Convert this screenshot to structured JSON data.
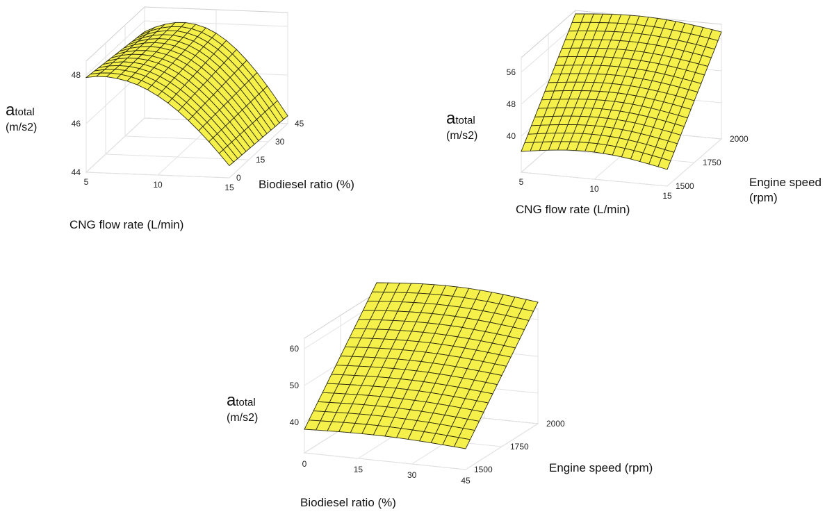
{
  "chart_data": [
    {
      "type": "surface",
      "zlabel": "atotal",
      "zlabel_symbol": "a",
      "zlabel_subscript": "total",
      "zlabel_unit": "(m/s2)",
      "xlabel": "CNG flow rate (L/min)",
      "ylabel": "Biodiesel ratio (%)",
      "x_ticks": [
        "5",
        "10",
        "15"
      ],
      "y_ticks": [
        "0",
        "15",
        "30",
        "45"
      ],
      "z_ticks": [
        "44",
        "46",
        "48"
      ],
      "x_range": [
        5,
        15
      ],
      "y_range": [
        0,
        45
      ],
      "z_range": [
        44,
        48
      ],
      "surface": {
        "x": [
          5,
          15
        ],
        "y": [
          0,
          45
        ],
        "z": [
          [
            47.8,
            47.6,
            47.4,
            47.1
          ],
          [
            46.9,
            46.6,
            46.3,
            46.1
          ],
          [
            45.2,
            44.9,
            44.7,
            44.5
          ]
        ]
      },
      "surface_color": "#f5f04a"
    },
    {
      "type": "surface",
      "zlabel": "atotal",
      "zlabel_symbol": "a",
      "zlabel_subscript": "total",
      "zlabel_unit": "(m/s2)",
      "xlabel": "CNG flow rate (L/min)",
      "ylabel": "Engine speed (rpm)",
      "x_ticks": [
        "5",
        "10",
        "15"
      ],
      "y_ticks": [
        "1500",
        "1750",
        "2000"
      ],
      "z_ticks": [
        "40",
        "48",
        "56"
      ],
      "x_range": [
        5,
        15
      ],
      "y_range": [
        1500,
        2000
      ],
      "z_range": [
        36,
        58
      ],
      "surface_color": "#f5f04a"
    },
    {
      "type": "surface",
      "zlabel": "atotal",
      "zlabel_symbol": "a",
      "zlabel_subscript": "total",
      "zlabel_unit": "(m/s2)",
      "xlabel": "Biodiesel ratio (%)",
      "ylabel": "Engine speed (rpm)",
      "x_ticks": [
        "0",
        "15",
        "30",
        "45"
      ],
      "y_ticks": [
        "1500",
        "1750",
        "2000"
      ],
      "z_ticks": [
        "40",
        "50",
        "60"
      ],
      "x_range": [
        0,
        45
      ],
      "y_range": [
        1500,
        2000
      ],
      "z_range": [
        35,
        62
      ],
      "surface_color": "#f5f04a"
    }
  ]
}
